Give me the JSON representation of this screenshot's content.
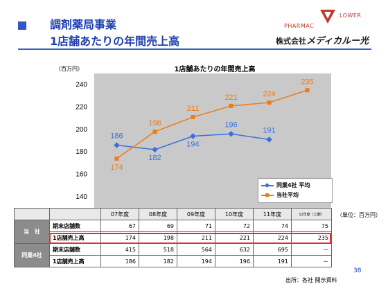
{
  "header": {
    "title_line1": "調剤薬局事業",
    "title_line2": "1店舗あたりの年間売上高",
    "logo_left": "PHARMAC",
    "logo_right": "LOWER",
    "company_prefix": "株式会社",
    "company_brand": "メディカルー光"
  },
  "footer": {
    "page_number": "38",
    "source": "出所：各社 開示資料",
    "unit_note": "（単位：百万円）"
  },
  "colors": {
    "accent": "#1f3fb0",
    "company_series": "#f07b13",
    "peer_series": "#3a6fe0",
    "plot_bg": "#c9c9c9",
    "highlight": "#e03030"
  },
  "chart_data": {
    "type": "line",
    "title": "1店舗あたりの年間売上高",
    "ylabel": "（百万円）",
    "xlabel": "",
    "ylim": [
      130,
      250
    ],
    "yticks": [
      140,
      160,
      180,
      200,
      220,
      240
    ],
    "categories": [
      "07年度",
      "08年度",
      "09年度",
      "10年度",
      "11年度",
      "12年度(上期)"
    ],
    "grid": false,
    "legend_position": "bottom-right",
    "series": [
      {
        "name": "同業4社 平均",
        "color": "#3a6fe0",
        "marker": "diamond",
        "values": [
          186,
          182,
          194,
          196,
          191,
          null
        ]
      },
      {
        "name": "当社平均",
        "color": "#f07b13",
        "marker": "square",
        "values": [
          174,
          198,
          211,
          221,
          224,
          235
        ]
      }
    ]
  },
  "table": {
    "columns": [
      "07年度",
      "08年度",
      "09年度",
      "10年度",
      "11年度",
      "12年度（上期）"
    ],
    "groups": [
      {
        "label": "当　社",
        "rows": [
          {
            "label": "期末店舗数",
            "values": [
              "67",
              "69",
              "71",
              "72",
              "74",
              "75"
            ]
          },
          {
            "label": "1店舗売上高",
            "values": [
              "174",
              "198",
              "211",
              "221",
              "224",
              "235"
            ]
          }
        ]
      },
      {
        "label": "同業4社",
        "rows": [
          {
            "label": "期末店舗数",
            "values": [
              "415",
              "518",
              "564",
              "632",
              "695",
              "－"
            ]
          },
          {
            "label": "1店舗売上高",
            "values": [
              "186",
              "182",
              "194",
              "196",
              "191",
              "－"
            ]
          }
        ]
      }
    ]
  }
}
